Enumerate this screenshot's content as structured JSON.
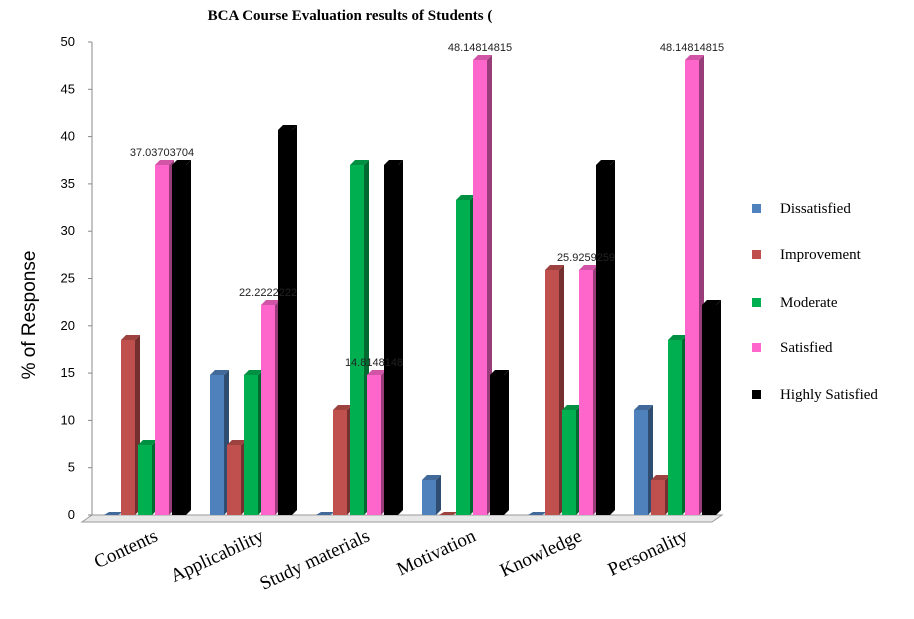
{
  "chart_data": {
    "type": "bar",
    "title": "BCA Course Evaluation  results of  Students (",
    "ylabel": "% of Response",
    "xlabel": "",
    "ylim": [
      0,
      50
    ],
    "yticks": [
      0,
      5,
      10,
      15,
      20,
      25,
      30,
      35,
      40,
      45,
      50
    ],
    "categories": [
      "Contents",
      "Applicability",
      "Study materials",
      "Motivation",
      "Knowledge",
      "Personality"
    ],
    "series": [
      {
        "name": "Dissatisfied",
        "color": "#4f81bd",
        "values": [
          0,
          14.8,
          0,
          3.7,
          0,
          11.1
        ]
      },
      {
        "name": "Improvement",
        "color": "#c0504d",
        "values": [
          18.5,
          7.4,
          11.1,
          0,
          25.9,
          3.7
        ]
      },
      {
        "name": "Moderate",
        "color": "#00b050",
        "values": [
          7.4,
          14.8,
          37.0,
          33.3,
          11.1,
          18.5
        ]
      },
      {
        "name": "Satisfied",
        "color": "#ff66cc",
        "values": [
          37.0,
          22.2,
          14.8,
          48.1,
          25.9,
          48.1
        ]
      },
      {
        "name": "Highly Satisfied",
        "color": "#000000",
        "values": [
          37.0,
          40.7,
          37.0,
          14.8,
          37.0,
          22.2
        ]
      }
    ],
    "data_labels": [
      {
        "category": "Contents",
        "series": "Satisfied",
        "text": "37.03703704"
      },
      {
        "category": "Applicability",
        "series": "Satisfied",
        "text": "22.2222222"
      },
      {
        "category": "Study materials",
        "series": "Satisfied",
        "text": "14.8148148"
      },
      {
        "category": "Motivation",
        "series": "Satisfied",
        "text": "48.14814815"
      },
      {
        "category": "Knowledge",
        "series": "Satisfied",
        "text": "25.9259259"
      },
      {
        "category": "Personality",
        "series": "Satisfied",
        "text": "48.14814815"
      }
    ],
    "legend_position": "right",
    "grid": false
  }
}
